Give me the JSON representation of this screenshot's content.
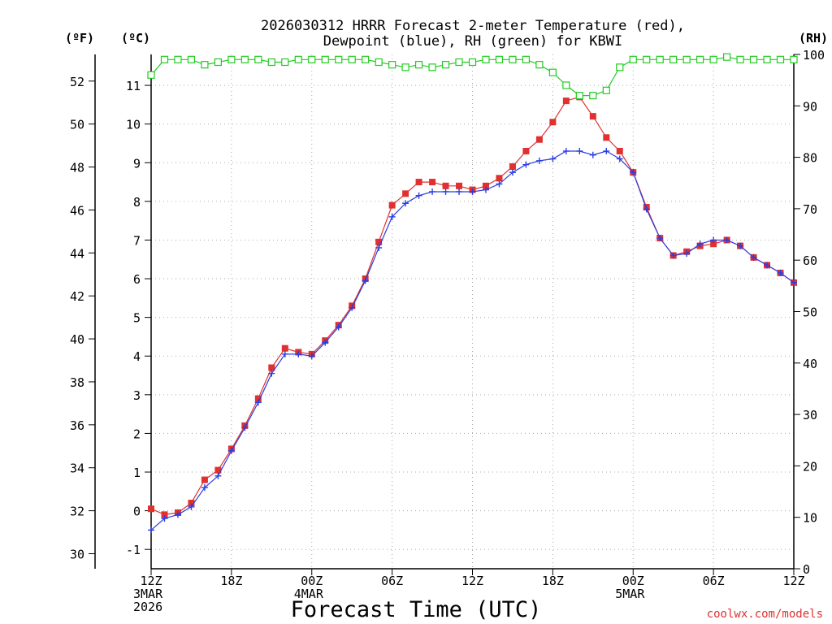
{
  "chart_data": {
    "type": "line",
    "title_lines": [
      "2026030312 HRRR Forecast 2-meter Temperature (red),",
      "Dewpoint (blue), RH (green) for KBWI"
    ],
    "xlabel": "Forecast Time (UTC)",
    "credit": "coolwx.com/models",
    "units": {
      "left_outer": "(ºF)",
      "left_inner": "(ºC)",
      "right": "(RH)"
    },
    "c_axis": {
      "min": -1.5,
      "max": 11.8,
      "ticks": [
        "-1",
        "0",
        "1",
        "2",
        "3",
        "4",
        "5",
        "6",
        "7",
        "8",
        "9",
        "10",
        "11"
      ]
    },
    "f_axis": {
      "ticks": [
        "30",
        "32",
        "34",
        "36",
        "38",
        "40",
        "42",
        "44",
        "46",
        "48",
        "50",
        "52"
      ]
    },
    "rh_axis": {
      "min": 0,
      "max": 100,
      "ticks": [
        "0",
        "10",
        "20",
        "30",
        "40",
        "50",
        "60",
        "70",
        "80",
        "90",
        "100"
      ]
    },
    "x_axis": {
      "min_hour": 0,
      "max_hour": 48,
      "ticks": [
        {
          "hour": 0,
          "lines": [
            "12Z",
            "3MAR",
            "2026"
          ]
        },
        {
          "hour": 6,
          "lines": [
            "18Z"
          ]
        },
        {
          "hour": 12,
          "lines": [
            "00Z",
            "4MAR"
          ]
        },
        {
          "hour": 18,
          "lines": [
            "06Z"
          ]
        },
        {
          "hour": 24,
          "lines": [
            "12Z"
          ]
        },
        {
          "hour": 30,
          "lines": [
            "18Z"
          ]
        },
        {
          "hour": 36,
          "lines": [
            "00Z",
            "5MAR"
          ]
        },
        {
          "hour": 42,
          "lines": [
            "06Z"
          ]
        },
        {
          "hour": 48,
          "lines": [
            "12Z"
          ]
        }
      ]
    },
    "series": [
      {
        "name": "Temperature",
        "unit": "C",
        "color": "#e03030",
        "axis": "c",
        "values": [
          0.05,
          -0.1,
          -0.05,
          0.2,
          0.8,
          1.05,
          1.6,
          2.2,
          2.9,
          3.7,
          4.2,
          4.1,
          4.05,
          4.4,
          4.8,
          5.3,
          6.0,
          6.95,
          7.9,
          8.2,
          8.5,
          8.5,
          8.4,
          8.4,
          8.3,
          8.4,
          8.6,
          8.9,
          9.3,
          9.6,
          10.05,
          10.6,
          10.7,
          10.2,
          9.65,
          9.3,
          8.75,
          7.85,
          7.05,
          6.6,
          6.7,
          6.85,
          6.9,
          7.0,
          6.85,
          6.55,
          6.35,
          6.15,
          5.9
        ]
      },
      {
        "name": "Dewpoint",
        "unit": "C",
        "color": "#2b3ee0",
        "axis": "c",
        "values": [
          -0.5,
          -0.2,
          -0.1,
          0.1,
          0.6,
          0.9,
          1.55,
          2.15,
          2.8,
          3.55,
          4.05,
          4.05,
          4.0,
          4.35,
          4.75,
          5.25,
          5.95,
          6.8,
          7.6,
          7.95,
          8.15,
          8.25,
          8.25,
          8.25,
          8.25,
          8.3,
          8.45,
          8.75,
          8.95,
          9.05,
          9.1,
          9.3,
          9.3,
          9.2,
          9.3,
          9.1,
          8.75,
          7.8,
          7.05,
          6.6,
          6.65,
          6.9,
          7.0,
          7.0,
          6.85,
          6.55,
          6.35,
          6.15,
          5.9
        ]
      },
      {
        "name": "RH",
        "unit": "%",
        "color": "#22cc22",
        "axis": "rh",
        "values": [
          96,
          99,
          99,
          99,
          98,
          98.5,
          99,
          99,
          99,
          98.5,
          98.5,
          99,
          99,
          99,
          99,
          99,
          99,
          98.5,
          98,
          97.5,
          98,
          97.5,
          98,
          98.5,
          98.5,
          99,
          99,
          99,
          99,
          98,
          96.5,
          94,
          92,
          92,
          93,
          97.5,
          99,
          99,
          99,
          99,
          99,
          99,
          99,
          99.5,
          99,
          99,
          99,
          99,
          99
        ]
      }
    ]
  }
}
